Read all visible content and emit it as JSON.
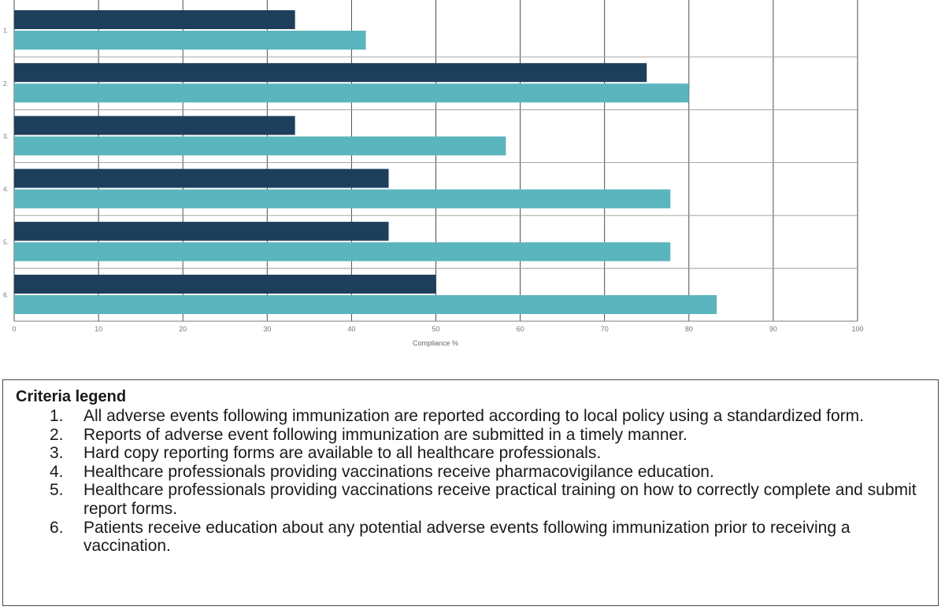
{
  "chart_data": {
    "type": "bar",
    "orientation": "horizontal",
    "categories": [
      "1.",
      "2.",
      "3.",
      "4.",
      "5.",
      "6."
    ],
    "series": [
      {
        "values": [
          33.3,
          75.0,
          33.3,
          44.4,
          44.4,
          50.0
        ]
      },
      {
        "values": [
          41.7,
          80.0,
          58.3,
          77.8,
          77.8,
          83.3
        ]
      }
    ],
    "colors": [
      "#1d3f5c",
      "#5bb5be"
    ],
    "xlabel": "Compliance %",
    "xlim": [
      0,
      100
    ],
    "xticks": [
      "0",
      "10",
      "20",
      "30",
      "40",
      "50",
      "60",
      "70",
      "80",
      "90",
      "100"
    ],
    "grid": true,
    "legend": "none"
  },
  "legend": {
    "title": "Criteria legend",
    "items": [
      {
        "num": "1.",
        "text": "All adverse events following immunization are reported according to local policy using a standardized form."
      },
      {
        "num": "2.",
        "text": "Reports of adverse event following immunization are submitted in a timely manner."
      },
      {
        "num": "3.",
        "text": "Hard copy reporting forms are available to all healthcare professionals."
      },
      {
        "num": "4.",
        "text": "Healthcare professionals providing vaccinations receive pharmacovigilance education."
      },
      {
        "num": "5.",
        "text": "Healthcare professionals providing vaccinations receive practical training on how to correctly complete and submit report forms."
      },
      {
        "num": "6.",
        "text": "Patients receive education about any potential adverse events following immunization prior to receiving a vaccination."
      }
    ]
  }
}
